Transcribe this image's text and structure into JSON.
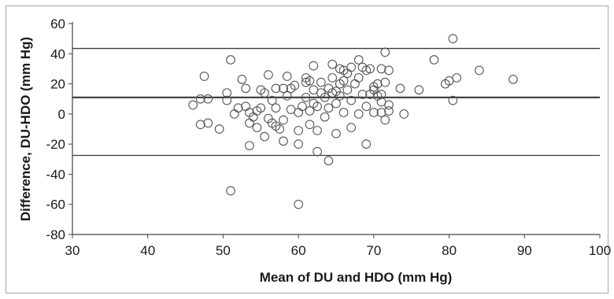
{
  "chart_data": {
    "type": "scatter",
    "title": "",
    "xlabel": "Mean of DU and HDO (mm Hg)",
    "ylabel": "Difference, DU-HDO (mm Hg)",
    "xlim": [
      30,
      100
    ],
    "ylim": [
      -80,
      60
    ],
    "xticks": [
      30,
      40,
      50,
      60,
      70,
      80,
      90,
      100
    ],
    "yticks": [
      -80,
      -60,
      -40,
      -20,
      0,
      20,
      40,
      60
    ],
    "grid": false,
    "reference_lines": [
      {
        "y": 43.5,
        "style": "thin"
      },
      {
        "y": 11,
        "style": "thick"
      },
      {
        "y": -27.5,
        "style": "thin"
      }
    ],
    "marker": "open-circle",
    "points": [
      [
        46,
        6
      ],
      [
        47,
        -7
      ],
      [
        47,
        10
      ],
      [
        47.5,
        25
      ],
      [
        48,
        -6
      ],
      [
        48,
        10
      ],
      [
        49.5,
        -10
      ],
      [
        50.5,
        14
      ],
      [
        50.5,
        9
      ],
      [
        51,
        36
      ],
      [
        51,
        -51
      ],
      [
        51.5,
        0
      ],
      [
        52,
        4
      ],
      [
        52.5,
        23
      ],
      [
        53,
        17
      ],
      [
        53,
        5
      ],
      [
        53.5,
        1
      ],
      [
        53.5,
        -6
      ],
      [
        53.5,
        -21
      ],
      [
        54,
        -2
      ],
      [
        54.5,
        2
      ],
      [
        54.5,
        -9
      ],
      [
        55,
        16
      ],
      [
        55,
        4
      ],
      [
        55.5,
        -15
      ],
      [
        55.5,
        14
      ],
      [
        56,
        26
      ],
      [
        56,
        -3
      ],
      [
        56.5,
        -6
      ],
      [
        56.5,
        9
      ],
      [
        57,
        17
      ],
      [
        57,
        4
      ],
      [
        57,
        -8
      ],
      [
        57.5,
        -10
      ],
      [
        58,
        17
      ],
      [
        58,
        -4
      ],
      [
        58,
        -18
      ],
      [
        58.5,
        25
      ],
      [
        58.5,
        12
      ],
      [
        59,
        3
      ],
      [
        59,
        17
      ],
      [
        59.5,
        19
      ],
      [
        60,
        -60
      ],
      [
        60,
        -20
      ],
      [
        60,
        1
      ],
      [
        60,
        -11
      ],
      [
        60.5,
        5
      ],
      [
        61,
        21
      ],
      [
        61,
        24
      ],
      [
        61,
        11
      ],
      [
        61.5,
        22
      ],
      [
        61.5,
        -7
      ],
      [
        61.5,
        2
      ],
      [
        62,
        32
      ],
      [
        62,
        16
      ],
      [
        62,
        7
      ],
      [
        62.5,
        5
      ],
      [
        62.5,
        -25
      ],
      [
        62.5,
        -11
      ],
      [
        63,
        21
      ],
      [
        63,
        14
      ],
      [
        63.5,
        -2
      ],
      [
        63.5,
        11
      ],
      [
        64,
        -31
      ],
      [
        64,
        17
      ],
      [
        64,
        4
      ],
      [
        64.5,
        33
      ],
      [
        64.5,
        24
      ],
      [
        64.5,
        14
      ],
      [
        65,
        15
      ],
      [
        65,
        7
      ],
      [
        65,
        -13
      ],
      [
        65.5,
        30
      ],
      [
        65.5,
        20
      ],
      [
        65.5,
        12
      ],
      [
        66,
        29
      ],
      [
        66,
        22
      ],
      [
        66,
        1
      ],
      [
        66.5,
        27
      ],
      [
        66.5,
        16
      ],
      [
        67,
        31
      ],
      [
        67,
        9
      ],
      [
        67,
        -9
      ],
      [
        67.5,
        20
      ],
      [
        68,
        36
      ],
      [
        68,
        24
      ],
      [
        68,
        0
      ],
      [
        68.5,
        31
      ],
      [
        68.5,
        13
      ],
      [
        69,
        29
      ],
      [
        69,
        5
      ],
      [
        69,
        -20
      ],
      [
        69.5,
        30
      ],
      [
        69.5,
        13
      ],
      [
        70,
        16
      ],
      [
        70,
        18
      ],
      [
        70,
        1
      ],
      [
        70.5,
        20
      ],
      [
        70.5,
        12
      ],
      [
        71,
        30
      ],
      [
        71,
        13
      ],
      [
        71,
        8
      ],
      [
        71,
        1
      ],
      [
        71.5,
        41
      ],
      [
        71.5,
        21
      ],
      [
        71.5,
        -4
      ],
      [
        72,
        29
      ],
      [
        72,
        6
      ],
      [
        72,
        2
      ],
      [
        73.5,
        17
      ],
      [
        74,
        0
      ],
      [
        76,
        16
      ],
      [
        78,
        36
      ],
      [
        79.5,
        20
      ],
      [
        80,
        22
      ],
      [
        80.5,
        50
      ],
      [
        80.5,
        9
      ],
      [
        81,
        24
      ],
      [
        84,
        29
      ],
      [
        88.5,
        23
      ]
    ]
  }
}
